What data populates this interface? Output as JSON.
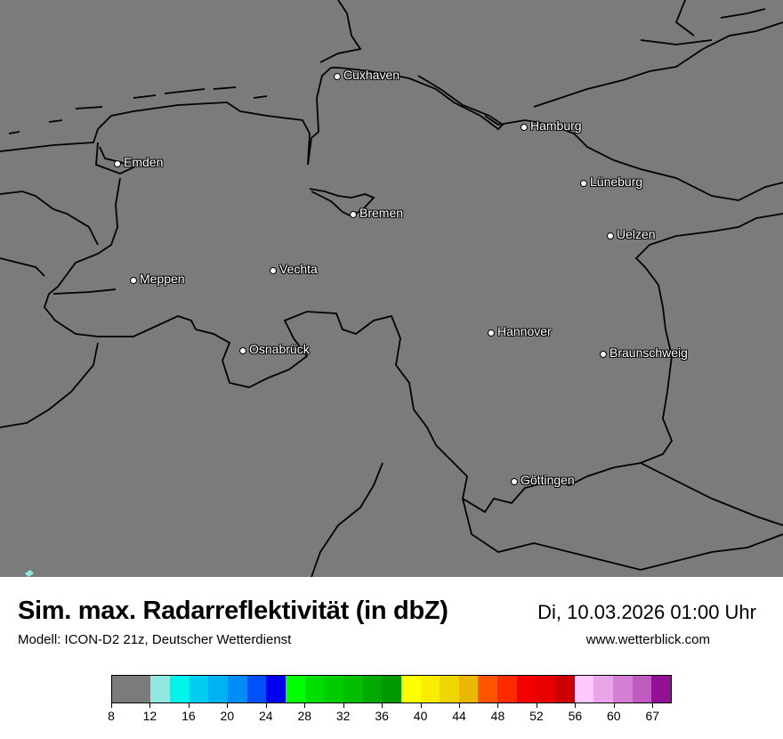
{
  "map": {
    "background_color": "#7b7b7b",
    "cities": [
      "Cuxhaven",
      "Hamburg",
      "Emden",
      "Lüneburg",
      "Bremen",
      "Uelzen",
      "Vechta",
      "Meppen",
      "Hannover",
      "Osnabrück",
      "Braunschweig",
      "Göttingen"
    ]
  },
  "header": {
    "title": "Sim. max. Radarreflektivität (in dbZ)",
    "datetime": "Di, 10.03.2026 01:00 Uhr",
    "model": "Modell: ICON-D2 21z, Deutscher Wetterdienst",
    "website": "www.wetterblick.com"
  },
  "colorbar": {
    "unit": "dbZ",
    "colors": [
      "#7b7b7b",
      "#7b7b7b",
      "#92e6e1",
      "#00f4ec",
      "#00cdef",
      "#00b1f3",
      "#008df6",
      "#0050f8",
      "#0000f0",
      "#00ff00",
      "#00de00",
      "#00cd00",
      "#00be00",
      "#00aa00",
      "#009800",
      "#ffff00",
      "#f8ec00",
      "#eed600",
      "#e8b900",
      "#ff5500",
      "#ff2a00",
      "#f50000",
      "#e80000",
      "#cc0000",
      "#ffc8ff",
      "#eaa5ea",
      "#d47fd4",
      "#bf5abf",
      "#930f93"
    ],
    "tick_labels": [
      "8",
      "12",
      "16",
      "20",
      "24",
      "28",
      "32",
      "36",
      "40",
      "44",
      "48",
      "52",
      "56",
      "60",
      "67"
    ]
  }
}
